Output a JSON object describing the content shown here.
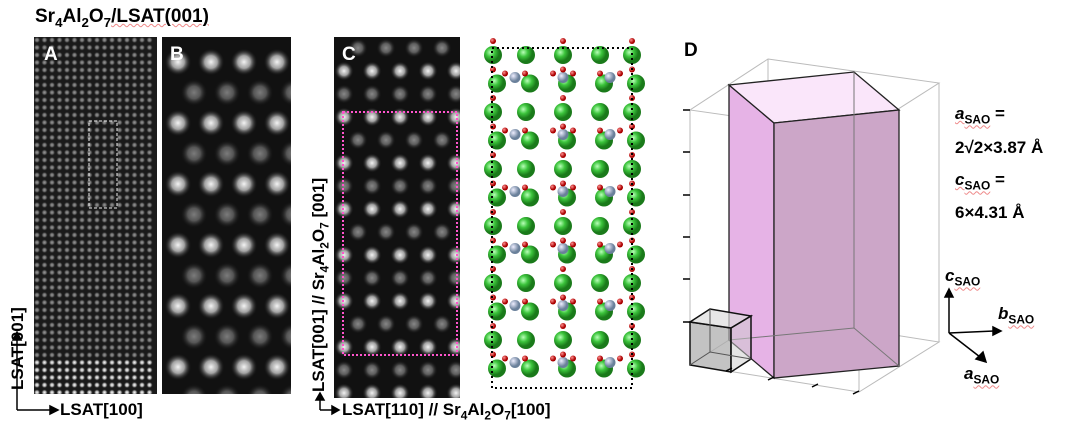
{
  "title": {
    "pre": "Sr",
    "s1": "4",
    "mid": "Al",
    "s2": "2",
    "o": "O",
    "s3": "7",
    "post": "/LSAT(001)"
  },
  "panels": {
    "a": "A",
    "b": "B",
    "c": "C",
    "d": "D"
  },
  "axes": {
    "a_vertical": "LSAT[001]",
    "a_horizontal": "LSAT[100]",
    "c_vertical": {
      "pre": "LSAT[001] // Sr",
      "s1": "4",
      "mid": "Al",
      "s2": "2",
      "o": "O",
      "s3": "7",
      "post": " [001]"
    },
    "c_horizontal": {
      "pre": "LSAT[110] // Sr",
      "s1": "4",
      "mid": "Al",
      "s2": "2",
      "o": "O",
      "s3": "7",
      "post": "[100]"
    }
  },
  "lattice": {
    "a_label": "a",
    "a_sub": "SAO",
    "a_eq": " =",
    "a_value": "2√2×3.87 Å",
    "c_label": "c",
    "c_sub": "SAO",
    "c_eq": " =",
    "c_value": "6×4.31 Å"
  },
  "crystal_axes": {
    "c": "c",
    "b": "b",
    "a": "a",
    "sub": "SAO"
  },
  "colors": {
    "sr": "#3cc43c",
    "al": "#8aa0b8",
    "o": "#cc2020",
    "cell_fill": "#d9a6d9",
    "highlight": "#ff55cc"
  }
}
